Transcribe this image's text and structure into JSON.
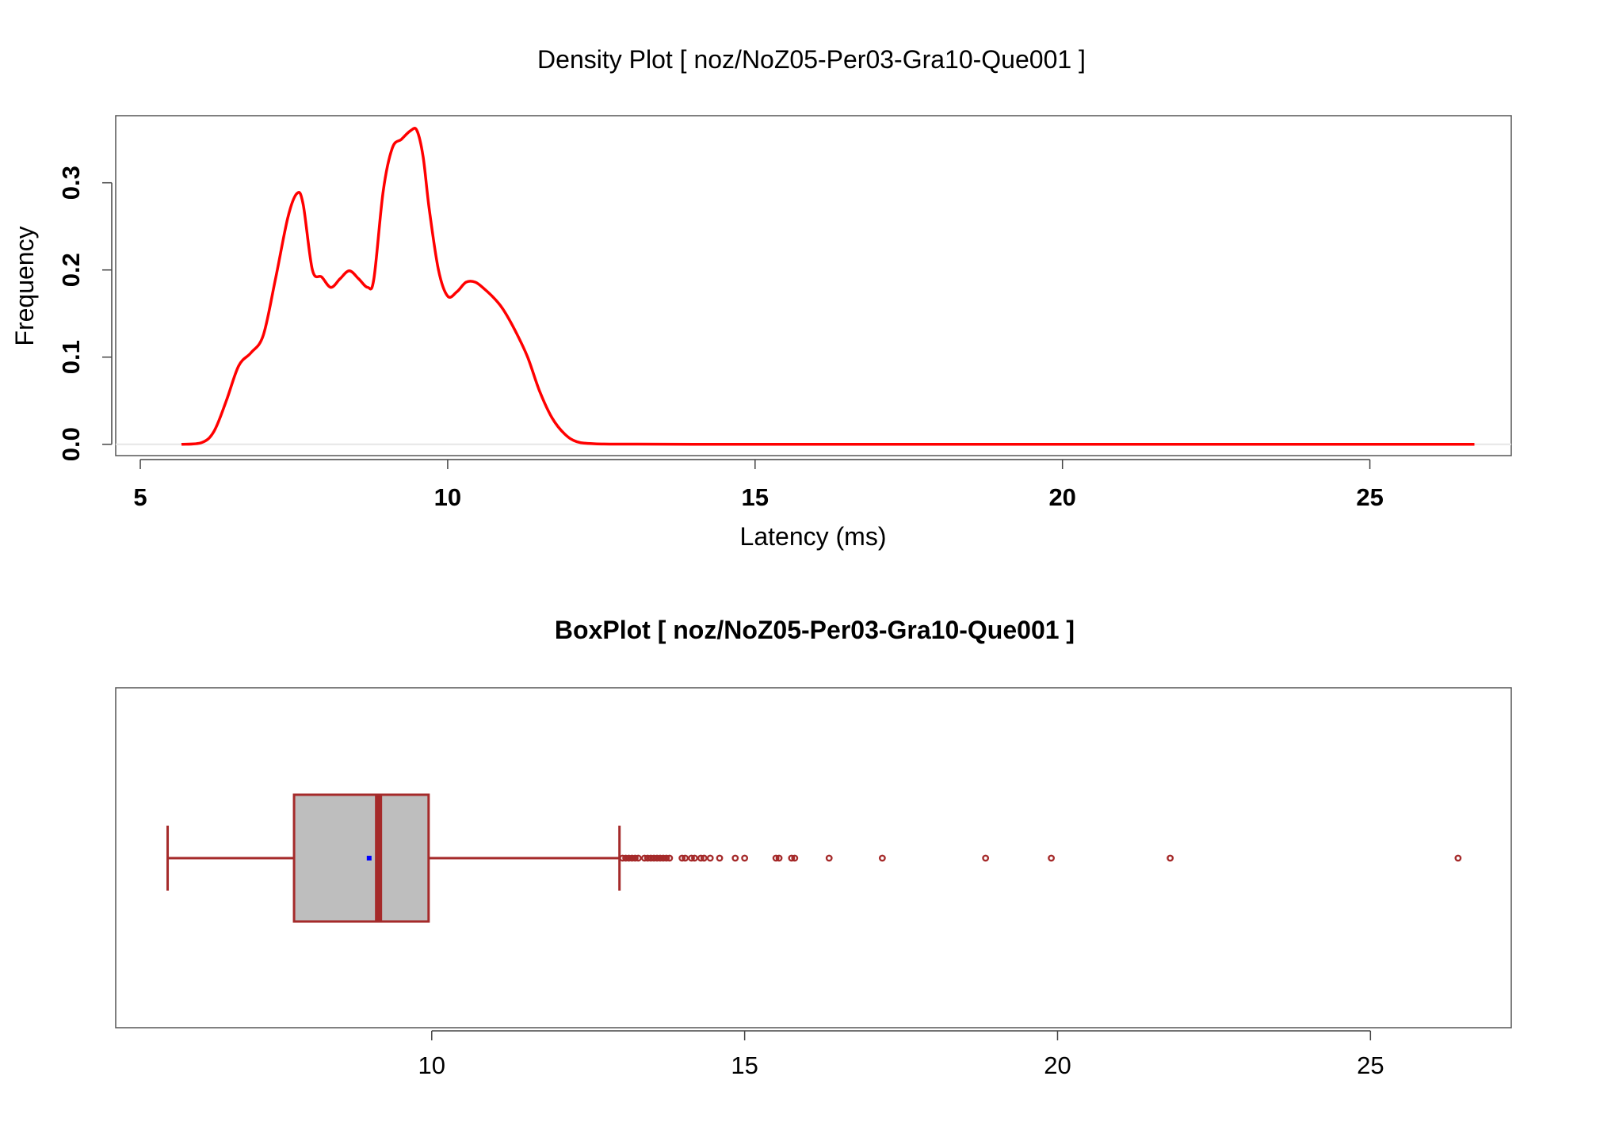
{
  "chart_data": [
    {
      "type": "line",
      "title": "Density Plot [ noz/NoZ05-Per03-Gra10-Que001 ]",
      "xlabel": "Latency (ms)",
      "ylabel": "Frequency",
      "xlim": [
        4.6,
        27.3
      ],
      "ylim": [
        -0.013,
        0.377
      ],
      "x_ticks": [
        5,
        10,
        15,
        20,
        25
      ],
      "x_tick_labels": [
        "5",
        "10",
        "15",
        "20",
        "25"
      ],
      "y_ticks": [
        0.0,
        0.1,
        0.2,
        0.3
      ],
      "y_tick_labels": [
        "0.0",
        "0.1",
        "0.2",
        "0.3"
      ],
      "grid": false,
      "line_color": "#ff0000",
      "baseline_color": "#e6e6e6",
      "series": [
        {
          "x": [
            5.67,
            6.0,
            6.2,
            6.4,
            6.6,
            6.8,
            7.0,
            7.2,
            7.4,
            7.55,
            7.65,
            7.8,
            7.95,
            8.1,
            8.25,
            8.4,
            8.55,
            8.7,
            8.8,
            8.95,
            9.1,
            9.25,
            9.4,
            9.5,
            9.6,
            9.7,
            9.85,
            10.0,
            10.15,
            10.3,
            10.45,
            10.6,
            10.75,
            10.9,
            11.1,
            11.3,
            11.5,
            11.7,
            11.9,
            12.1,
            12.4,
            13.0,
            14.0,
            16.0,
            20.0,
            24.0,
            26.7
          ],
          "y": [
            0.0,
            0.002,
            0.015,
            0.05,
            0.09,
            0.105,
            0.125,
            0.19,
            0.26,
            0.288,
            0.275,
            0.2,
            0.192,
            0.18,
            0.19,
            0.199,
            0.19,
            0.18,
            0.19,
            0.29,
            0.34,
            0.35,
            0.36,
            0.36,
            0.33,
            0.27,
            0.2,
            0.17,
            0.175,
            0.186,
            0.186,
            0.178,
            0.168,
            0.155,
            0.13,
            0.1,
            0.06,
            0.03,
            0.012,
            0.003,
            0.0005,
            0.0002,
            0.0,
            0.0,
            0.0,
            0.0,
            0.0
          ]
        }
      ]
    },
    {
      "type": "boxplot",
      "title": "BoxPlot [ noz/NoZ05-Per03-Gra10-Que001 ]",
      "xlabel": "",
      "ylabel": "",
      "xlim": [
        4.95,
        27.25
      ],
      "x_ticks": [
        10,
        15,
        20,
        25
      ],
      "x_tick_labels": [
        "10",
        "15",
        "20",
        "25"
      ],
      "grid": false,
      "box_fill": "#bebebe",
      "border_color": "#a52a2a",
      "mean_color": "#0000ff",
      "whisker_low": 5.78,
      "q1": 7.8,
      "median": 9.15,
      "q3": 9.95,
      "whisker_high": 13.0,
      "mean": 9.0,
      "outliers": [
        13.05,
        13.1,
        13.15,
        13.2,
        13.25,
        13.3,
        13.4,
        13.45,
        13.5,
        13.55,
        13.6,
        13.65,
        13.7,
        13.75,
        13.8,
        14.0,
        14.05,
        14.15,
        14.2,
        14.3,
        14.35,
        14.45,
        14.6,
        14.85,
        15.0,
        15.5,
        15.55,
        15.75,
        15.8,
        16.35,
        17.2,
        18.85,
        19.9,
        21.8,
        26.4
      ]
    }
  ]
}
